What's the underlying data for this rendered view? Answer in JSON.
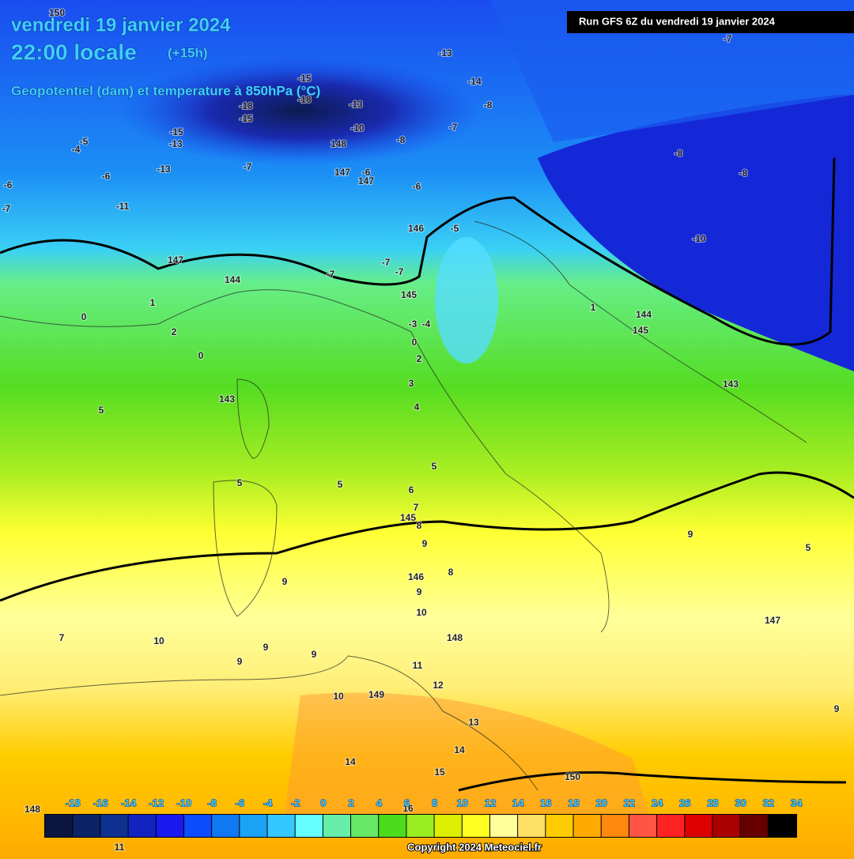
{
  "header": {
    "date": "vendredi 19 janvier 2024",
    "time": "22:00 locale",
    "lead": "(+15h)",
    "subtitle": "Geopotentiel (dam) et temperature à 850hPa (°C)",
    "run": "Run GFS 6Z du vendredi 19 janvier 2024"
  },
  "map": {
    "labels": [
      "150",
      "-5",
      "-4",
      "-6",
      "-7",
      "-6",
      "-11",
      "-13",
      "-13",
      "-15",
      "-18",
      "-15",
      "-15",
      "-18",
      "-13",
      "-10",
      "148",
      "147",
      "147",
      "-6",
      "-7",
      "-13",
      "-14",
      "-8",
      "-7",
      "-8",
      "-6",
      "146",
      "-5",
      "147",
      "144",
      "-7",
      "-7",
      "-7",
      "145",
      "-8",
      "-8",
      "-7",
      "-10",
      "1",
      "144",
      "145",
      "143",
      "0",
      "1",
      "2",
      "0",
      "5",
      "143",
      "3",
      "4",
      "2",
      "0",
      "-3",
      "-4",
      "5",
      "5",
      "5",
      "6",
      "7",
      "145",
      "8",
      "9",
      "9",
      "5",
      "9",
      "146",
      "8",
      "9",
      "10",
      "147",
      "7",
      "10",
      "9",
      "9",
      "9",
      "148",
      "11",
      "12",
      "10",
      "149",
      "13",
      "9",
      "14",
      "14",
      "15",
      "150",
      "16",
      "148",
      "11"
    ]
  },
  "colorbar": {
    "ticks": [
      -18,
      -16,
      -14,
      -12,
      -10,
      -8,
      -6,
      -4,
      -2,
      0,
      2,
      4,
      6,
      8,
      10,
      12,
      14,
      16,
      18,
      20,
      22,
      24,
      26,
      28,
      30,
      32,
      34
    ],
    "colors": [
      "#0a1640",
      "#0c2466",
      "#0e3190",
      "#1224c0",
      "#1a1af0",
      "#0b4cff",
      "#1078f0",
      "#1aa2f5",
      "#35c8ff",
      "#66ffff",
      "#66eeaa",
      "#66e866",
      "#4cdc1e",
      "#99ee22",
      "#ddee00",
      "#ffff22",
      "#ffff99",
      "#ffe066",
      "#ffcc00",
      "#ffaa00",
      "#ff8811",
      "#ff5544",
      "#ff2222",
      "#dd0000",
      "#aa0000",
      "#660000",
      "#000000"
    ]
  },
  "footer": {
    "copyright": "Copyright 2024 Meteociel.fr"
  }
}
